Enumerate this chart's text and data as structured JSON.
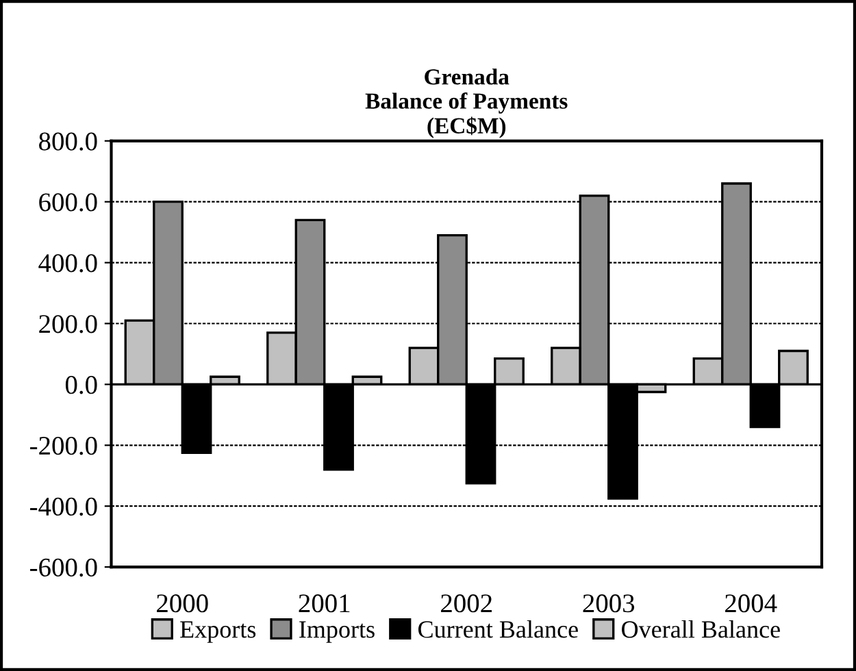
{
  "chart_data": {
    "type": "bar",
    "title": "Grenada\nBalance of Payments\n(EC$M)",
    "categories": [
      "2000",
      "2001",
      "2002",
      "2003",
      "2004"
    ],
    "series": [
      {
        "name": "Exports",
        "color": "#c0c0c0",
        "values": [
          210,
          170,
          120,
          120,
          85
        ]
      },
      {
        "name": "Imports",
        "color": "#8c8c8c",
        "values": [
          600,
          540,
          490,
          620,
          660
        ]
      },
      {
        "name": "Current Balance",
        "color": "#000000",
        "values": [
          -225,
          -280,
          -325,
          -375,
          -140
        ]
      },
      {
        "name": "Overall Balance",
        "color": "#c0c0c0",
        "values": [
          25,
          25,
          85,
          -25,
          110
        ]
      }
    ],
    "ylim": [
      -600,
      800
    ],
    "yticks": [
      {
        "value": -600,
        "label": "-600.0"
      },
      {
        "value": -400,
        "label": "-400.0"
      },
      {
        "value": -200,
        "label": "-200.0"
      },
      {
        "value": 0,
        "label": "0.0"
      },
      {
        "value": 200,
        "label": "200.0"
      },
      {
        "value": 400,
        "label": "400.0"
      },
      {
        "value": 600,
        "label": "600.0"
      },
      {
        "value": 800,
        "label": "800.0"
      }
    ],
    "grid": "y",
    "legend": "bottom"
  }
}
